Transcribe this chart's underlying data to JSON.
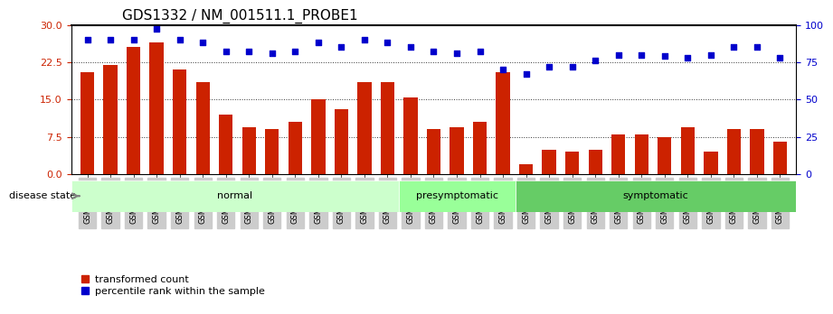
{
  "title": "GDS1332 / NM_001511.1_PROBE1",
  "samples": [
    "GSM30698",
    "GSM30699",
    "GSM30700",
    "GSM30701",
    "GSM30702",
    "GSM30703",
    "GSM30704",
    "GSM30705",
    "GSM30706",
    "GSM30707",
    "GSM30708",
    "GSM30709",
    "GSM30710",
    "GSM30711",
    "GSM30693",
    "GSM30694",
    "GSM30695",
    "GSM30696",
    "GSM30697",
    "GSM30681",
    "GSM30682",
    "GSM30683",
    "GSM30684",
    "GSM30685",
    "GSM30686",
    "GSM30687",
    "GSM30688",
    "GSM30689",
    "GSM30690",
    "GSM30691",
    "GSM30692"
  ],
  "bar_values": [
    20.5,
    22.0,
    25.5,
    26.5,
    21.0,
    18.5,
    12.0,
    9.5,
    9.0,
    10.5,
    15.0,
    13.0,
    18.5,
    18.5,
    15.5,
    9.0,
    9.5,
    10.5,
    20.5,
    2.0,
    5.0,
    4.5,
    5.0,
    8.0,
    8.0,
    7.5,
    9.5,
    4.5,
    9.0,
    9.0,
    6.5
  ],
  "percentile_values": [
    90,
    90,
    90,
    97,
    90,
    88,
    82,
    82,
    81,
    82,
    88,
    85,
    90,
    88,
    85,
    82,
    81,
    82,
    70,
    67,
    72,
    72,
    76,
    80,
    80,
    79,
    78,
    80,
    85,
    85,
    78
  ],
  "disease_groups": [
    {
      "label": "normal",
      "start": 0,
      "end": 13,
      "color": "#ccffcc"
    },
    {
      "label": "presymptomatic",
      "start": 14,
      "end": 18,
      "color": "#99ff99"
    },
    {
      "label": "symptomatic",
      "start": 19,
      "end": 30,
      "color": "#66cc66"
    }
  ],
  "bar_color": "#cc2200",
  "dot_color": "#0000cc",
  "left_yticks": [
    0,
    7.5,
    15,
    22.5,
    30
  ],
  "right_yticks": [
    0,
    25,
    50,
    75,
    100
  ],
  "left_ylim": [
    0,
    30
  ],
  "right_ylim": [
    0,
    100
  ],
  "left_ylabel_color": "#cc2200",
  "right_ylabel_color": "#0000cc",
  "grid_color": "#333333",
  "background_color": "#ffffff",
  "disease_state_label": "disease state",
  "legend_bar_label": "transformed count",
  "legend_dot_label": "percentile rank within the sample"
}
